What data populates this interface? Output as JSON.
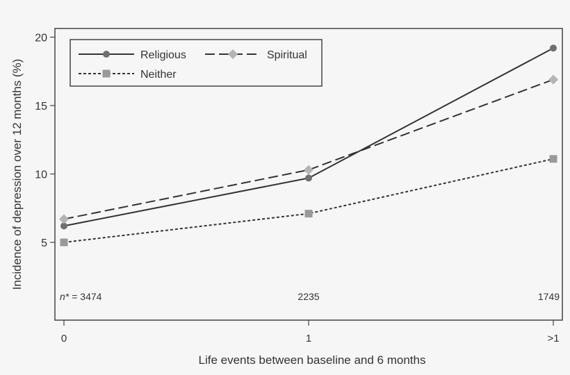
{
  "chart_data": {
    "type": "line",
    "xlabel": "Life events between baseline and 6 months",
    "ylabel": "Incidence of depression over 12 months (%)",
    "categories": [
      "0",
      "1",
      ">1"
    ],
    "ylim": [
      3,
      21
    ],
    "yticks": [
      "5",
      "10",
      "15",
      "20"
    ],
    "grid": false,
    "legend_position": "top-left",
    "series": [
      {
        "name": "Religious",
        "values": [
          6.2,
          9.7,
          19.2
        ],
        "marker": "circle",
        "dash": "solid",
        "color": "#333333",
        "marker_color": "#707070"
      },
      {
        "name": "Spiritual",
        "values": [
          6.7,
          10.3,
          16.9
        ],
        "marker": "diamond",
        "dash": "dashed",
        "color": "#333333",
        "marker_color": "#b4b4b4"
      },
      {
        "name": "Neither",
        "values": [
          5.0,
          7.1,
          11.1
        ],
        "marker": "square",
        "dash": "dotted",
        "color": "#333333",
        "marker_color": "#999999"
      }
    ],
    "annotations": {
      "n_label": "n*",
      "n_values": [
        "= 3474",
        "2235",
        "1749"
      ]
    }
  }
}
